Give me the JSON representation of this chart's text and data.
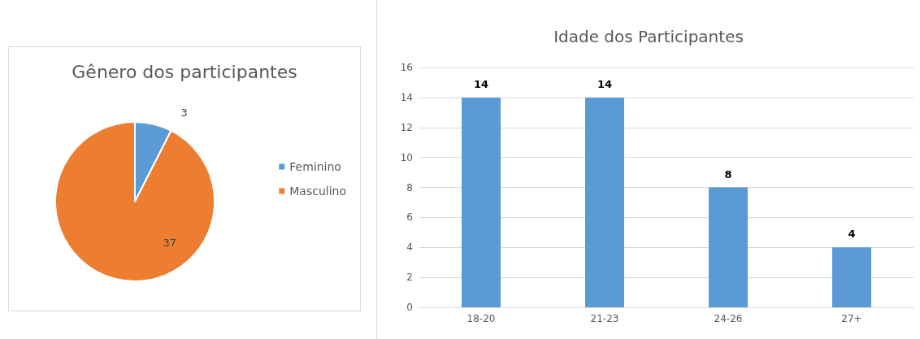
{
  "chart_data": [
    {
      "type": "pie",
      "title": "Gênero dos participantes",
      "categories": [
        "Feminino",
        "Masculino"
      ],
      "values": [
        3,
        37
      ],
      "colors": [
        "#5b9bd5",
        "#ed7d31"
      ],
      "data_labels": true,
      "legend": "right"
    },
    {
      "type": "bar",
      "title": "Idade dos Participantes",
      "categories": [
        "18-20",
        "21-23",
        "24-26",
        "27+"
      ],
      "values": [
        14,
        14,
        8,
        4
      ],
      "color": "#5b9bd5",
      "ylim": [
        0,
        16
      ],
      "yticks": [
        0,
        2,
        4,
        6,
        8,
        10,
        12,
        14,
        16
      ],
      "grid": "y",
      "data_labels": true
    }
  ]
}
